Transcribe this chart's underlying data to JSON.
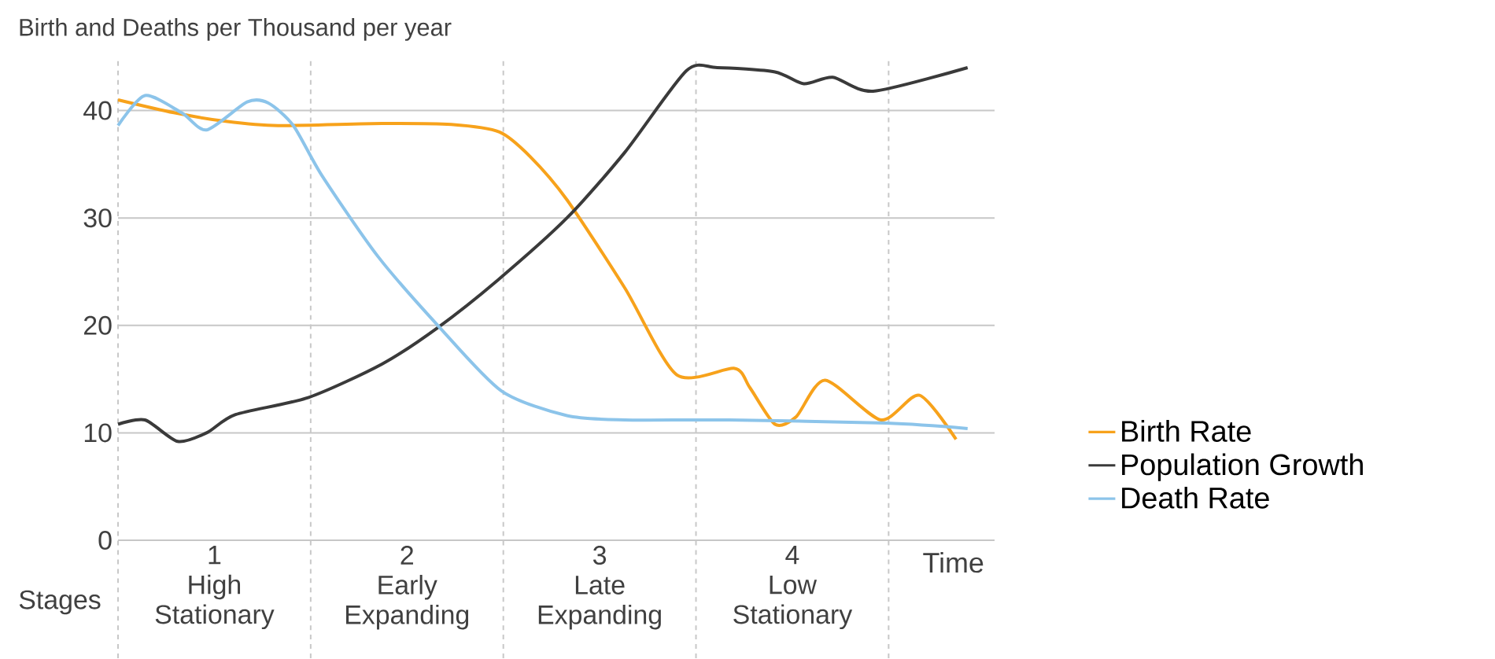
{
  "chart_data": {
    "type": "line",
    "title": "Birth and Deaths per Thousand per year",
    "xlabel": "Time",
    "annotations": [
      "Stages"
    ],
    "xlim": [
      0,
      4.55
    ],
    "ylim": [
      0,
      45
    ],
    "xticks": [
      {
        "value": 0.5,
        "label": "1 High Stationary"
      },
      {
        "value": 1.5,
        "label": "2 Early Expanding"
      },
      {
        "value": 2.5,
        "label": "3 Late Expanding"
      },
      {
        "value": 3.5,
        "label": "4 Low Stationary"
      }
    ],
    "yticks": [
      0,
      10,
      20,
      30,
      40
    ],
    "grid": "y",
    "legend": "right",
    "ref_lines": [
      {
        "axis": "x",
        "value": 0,
        "color": "#c8c8c8",
        "line_style": "dashed"
      },
      {
        "axis": "x",
        "value": 1,
        "color": "#c8c8c8",
        "line_style": "dashed"
      },
      {
        "axis": "x",
        "value": 2,
        "color": "#c8c8c8",
        "line_style": "dashed"
      },
      {
        "axis": "x",
        "value": 3,
        "color": "#c8c8c8",
        "line_style": "dashed"
      },
      {
        "axis": "x",
        "value": 4,
        "color": "#c8c8c8",
        "line_style": "dashed"
      }
    ],
    "series": [
      {
        "name": "Birth Rate",
        "color": "#f7a21b",
        "x": [
          0,
          0.29,
          0.56,
          0.83,
          1.37,
          1.73,
          1.98,
          2.14,
          2.33,
          2.63,
          2.9,
          3.2,
          3.28,
          3.41,
          3.52,
          3.67,
          3.96,
          4.16,
          4.35
        ],
        "values": [
          41.0,
          39.8,
          39.0,
          38.6,
          38.8,
          38.7,
          38.0,
          35.7,
          31.7,
          23.5,
          15.4,
          16.0,
          14.2,
          10.8,
          11.5,
          14.9,
          11.2,
          13.5,
          9.4
        ]
      },
      {
        "name": "Population Growth",
        "color": "#3a3a3a",
        "x": [
          0,
          0.14,
          0.31,
          0.46,
          0.61,
          0.99,
          1.37,
          1.66,
          1.97,
          2.33,
          2.63,
          2.95,
          3.11,
          3.41,
          3.56,
          3.71,
          3.92,
          4.41
        ],
        "values": [
          10.8,
          11.2,
          9.2,
          10.0,
          11.7,
          13.3,
          16.4,
          19.8,
          24.2,
          30.0,
          36.1,
          43.7,
          44.0,
          43.6,
          42.5,
          43.1,
          41.8,
          44.0
        ]
      },
      {
        "name": "Death Rate",
        "color": "#8cc4ea",
        "x": [
          0,
          0.14,
          0.33,
          0.46,
          0.67,
          0.78,
          0.91,
          1.06,
          1.35,
          1.66,
          1.99,
          2.33,
          2.63,
          3.17,
          3.99,
          4.41
        ],
        "values": [
          38.6,
          41.4,
          39.8,
          38.2,
          40.8,
          40.7,
          38.6,
          33.9,
          26.4,
          20.0,
          13.9,
          11.6,
          11.2,
          11.2,
          10.9,
          10.4
        ]
      }
    ]
  }
}
